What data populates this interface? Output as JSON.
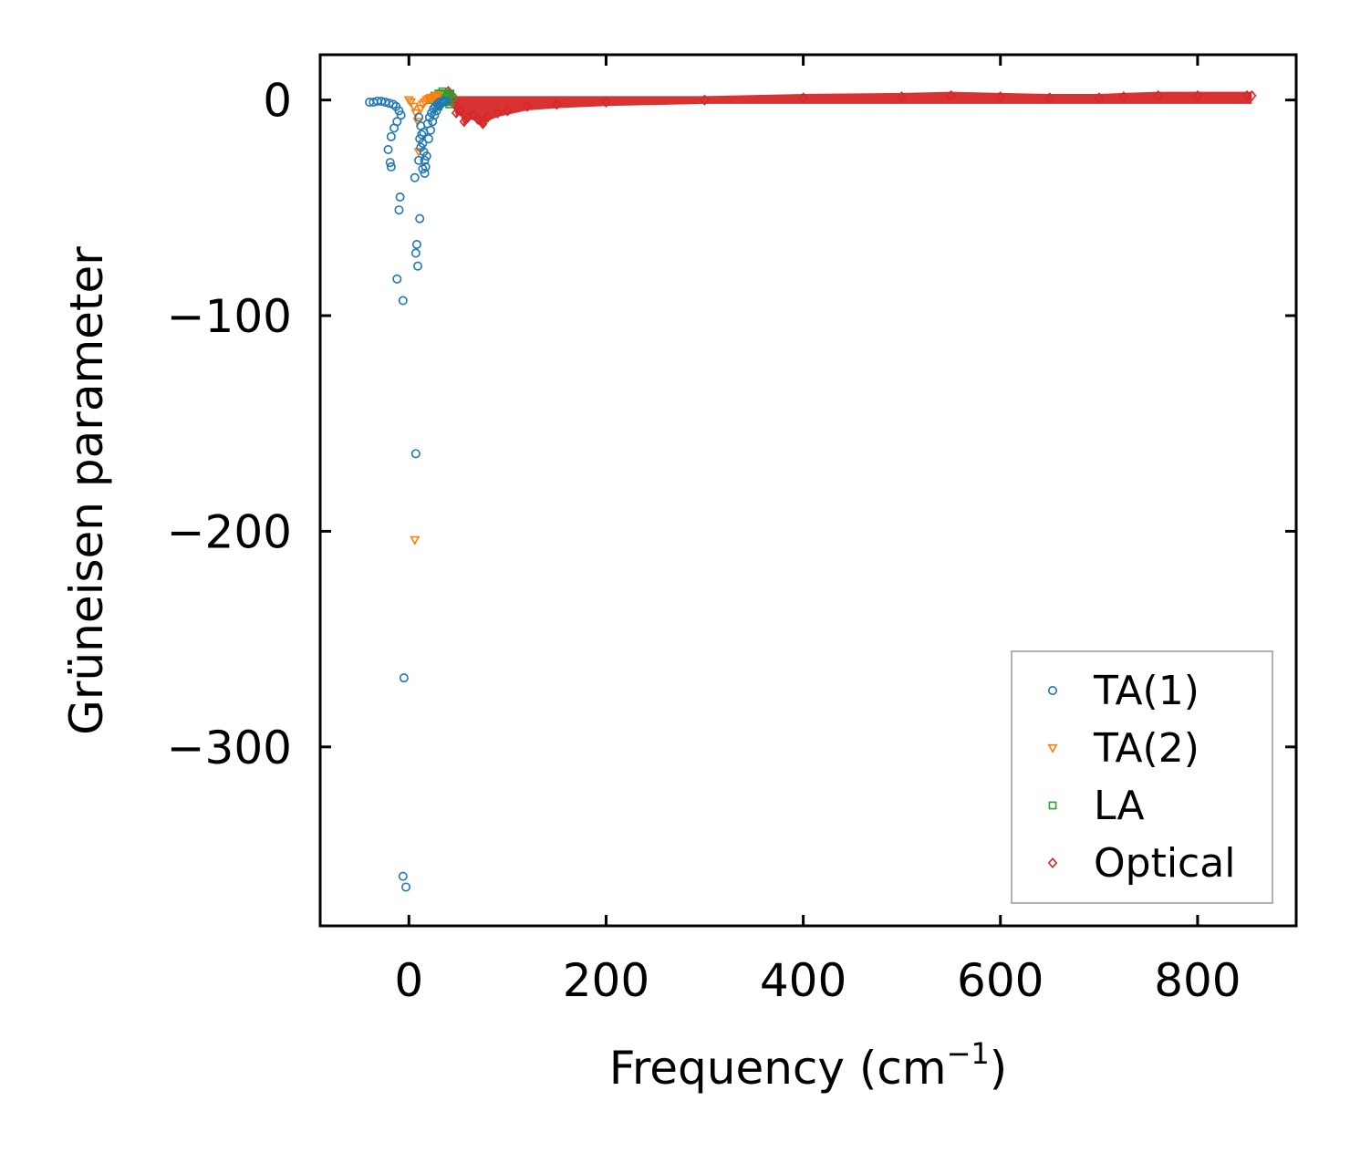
{
  "chart_data": {
    "type": "scatter",
    "title": "",
    "xlabel": "Frequency (cm",
    "xlabel_sup": "−1",
    "xlabel_end": ")",
    "ylabel": "Grüneisen parameter",
    "xlim": [
      -90,
      900
    ],
    "ylim": [
      -383,
      21
    ],
    "xticks": [
      0,
      200,
      400,
      600,
      800
    ],
    "xtick_labels": [
      "0",
      "200",
      "400",
      "600",
      "800"
    ],
    "yticks": [
      0,
      -100,
      -200,
      -300
    ],
    "ytick_labels": [
      "0",
      "−100",
      "−200",
      "−300"
    ],
    "grid": false,
    "legend_position": "lower-right",
    "series": [
      {
        "name": "TA(1)",
        "marker": "circle",
        "color": "#1f77b4",
        "points": [
          [
            -40,
            -1
          ],
          [
            -36,
            -1
          ],
          [
            -32,
            -0.5
          ],
          [
            -28,
            -0.6
          ],
          [
            -24,
            -1
          ],
          [
            -20,
            -1.5
          ],
          [
            -16,
            -2
          ],
          [
            -13,
            -3
          ],
          [
            -10,
            -5
          ],
          [
            -8,
            -7
          ],
          [
            -12,
            -10
          ],
          [
            -15,
            -13
          ],
          [
            -18,
            -17
          ],
          [
            -21,
            -23
          ],
          [
            -19,
            -29
          ],
          [
            -18,
            -31
          ],
          [
            -9,
            -45
          ],
          [
            -10,
            -51
          ],
          [
            -12,
            -83
          ],
          [
            -6,
            -93
          ],
          [
            -5,
            -268
          ],
          [
            -6,
            -360
          ],
          [
            -3,
            -365
          ],
          [
            6,
            -36
          ],
          [
            11,
            -55
          ],
          [
            8,
            -67
          ],
          [
            7,
            -71
          ],
          [
            9,
            -77
          ],
          [
            7,
            -164
          ],
          [
            10,
            -8
          ],
          [
            12,
            -12
          ],
          [
            13,
            -16
          ],
          [
            14,
            -20
          ],
          [
            15,
            -24
          ],
          [
            16,
            -28
          ],
          [
            17,
            -31
          ],
          [
            18,
            -26
          ],
          [
            20,
            -18
          ],
          [
            22,
            -14
          ],
          [
            24,
            -10
          ],
          [
            26,
            -7
          ],
          [
            28,
            -5
          ],
          [
            30,
            -3
          ],
          [
            32,
            -2
          ],
          [
            34,
            -1
          ],
          [
            36,
            -0.5
          ],
          [
            38,
            -0.3
          ],
          [
            12,
            -22
          ],
          [
            14,
            -32
          ],
          [
            16,
            -34
          ],
          [
            10,
            -28
          ],
          [
            11,
            -18
          ],
          [
            15,
            -15
          ],
          [
            19,
            -11
          ],
          [
            21,
            -8
          ],
          [
            23,
            -6
          ],
          [
            25,
            -4
          ],
          [
            27,
            -3
          ],
          [
            29,
            -2
          ],
          [
            31,
            -1
          ],
          [
            35,
            -1
          ]
        ]
      },
      {
        "name": "TA(2)",
        "marker": "triangle-down",
        "color": "#ff7f0e",
        "points": [
          [
            0,
            0
          ],
          [
            2,
            -1
          ],
          [
            5,
            -3
          ],
          [
            7,
            -6
          ],
          [
            9,
            -10
          ],
          [
            10,
            -24
          ],
          [
            12,
            -4
          ],
          [
            14,
            -2
          ],
          [
            16,
            -1
          ],
          [
            18,
            0
          ],
          [
            20,
            0.5
          ],
          [
            22,
            1
          ],
          [
            24,
            1
          ],
          [
            26,
            1.5
          ],
          [
            28,
            2
          ],
          [
            30,
            2
          ],
          [
            6,
            -204
          ]
        ]
      },
      {
        "name": "LA",
        "marker": "square",
        "color": "#2ca02c",
        "points": [
          [
            22,
            0
          ],
          [
            24,
            1
          ],
          [
            26,
            2
          ],
          [
            28,
            2
          ],
          [
            30,
            3
          ],
          [
            32,
            3
          ],
          [
            34,
            4
          ],
          [
            36,
            3
          ],
          [
            38,
            2
          ],
          [
            40,
            2
          ],
          [
            42,
            3
          ],
          [
            44,
            1
          ],
          [
            35,
            0
          ],
          [
            38,
            -1
          ],
          [
            41,
            -2
          ],
          [
            30,
            -3
          ],
          [
            33,
            -1
          ]
        ]
      },
      {
        "name": "Optical",
        "marker": "diamond",
        "color": "#d62728",
        "points": [
          [
            40,
            4
          ],
          [
            44,
            2
          ],
          [
            46,
            -2
          ],
          [
            48,
            -6
          ],
          [
            52,
            -5
          ],
          [
            56,
            -10
          ],
          [
            60,
            -8
          ],
          [
            65,
            -7
          ],
          [
            70,
            -9
          ],
          [
            75,
            -11
          ],
          [
            80,
            -8
          ],
          [
            90,
            -6
          ],
          [
            100,
            -5
          ],
          [
            120,
            -3
          ],
          [
            150,
            -2
          ],
          [
            200,
            -1
          ],
          [
            300,
            0
          ],
          [
            400,
            1
          ],
          [
            500,
            1.5
          ],
          [
            550,
            2
          ],
          [
            600,
            1.5
          ],
          [
            650,
            1
          ],
          [
            700,
            1
          ],
          [
            725,
            1.5
          ],
          [
            760,
            2
          ],
          [
            800,
            2
          ],
          [
            850,
            2
          ],
          [
            855,
            2
          ]
        ]
      }
    ]
  }
}
